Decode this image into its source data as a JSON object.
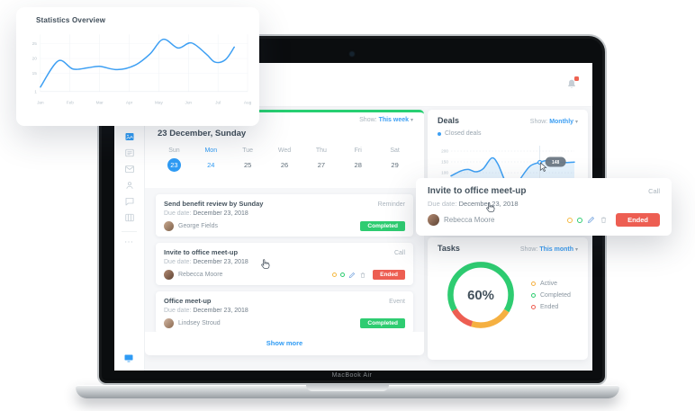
{
  "colors": {
    "accent_blue": "#3d9ff3",
    "green": "#2ecc71",
    "red": "#ed5e52",
    "orange": "#f5b041"
  },
  "laptop": {
    "brand": "MacBook Air"
  },
  "floating_stats": {
    "title": "Statistics Overview"
  },
  "app": {
    "header": {
      "icons": [
        "bell-icon"
      ],
      "has_alert": true
    },
    "sidebar": {
      "icons": [
        "dashboard-icon",
        "tasks-icon",
        "mail-icon",
        "contacts-icon",
        "chat-icon",
        "board-icon",
        "more-icon",
        "display-icon"
      ],
      "active": "dashboard-icon"
    },
    "schedule": {
      "show_label": "Show:",
      "show_value": "This week",
      "caret": "▾",
      "date_heading": "23 December, Sunday",
      "selected_day_index": 0,
      "highlight_day_index": 1,
      "days": [
        {
          "name": "Sun",
          "date": "23"
        },
        {
          "name": "Mon",
          "date": "24"
        },
        {
          "name": "Tue",
          "date": "25"
        },
        {
          "name": "Wed",
          "date": "26"
        },
        {
          "name": "Thu",
          "date": "27"
        },
        {
          "name": "Fri",
          "date": "28"
        },
        {
          "name": "Sat",
          "date": "29"
        }
      ],
      "tasks": [
        {
          "title": "Send benefit review by Sunday",
          "type": "Reminder",
          "due_label": "Due date:",
          "due": "December 23, 2018",
          "assignee": "George Fields",
          "status": "Completed",
          "status_color": "#2ecc71"
        },
        {
          "title": "Invite to office meet-up",
          "type": "Call",
          "due_label": "Due date:",
          "due": "December 23, 2018",
          "assignee": "Rebecca Moore",
          "status": "Ended",
          "status_color": "#ed5e52"
        },
        {
          "title": "Office meet-up",
          "type": "Event",
          "due_label": "Due date:",
          "due": "December 23, 2018",
          "assignee": "Lindsey Stroud",
          "status": "Completed",
          "status_color": "#2ecc71"
        }
      ],
      "show_more_label": "Show more"
    },
    "deals": {
      "title": "Deals",
      "show_label": "Show:",
      "show_value": "Monthly",
      "caret": "▾",
      "legend_label": "Closed deals",
      "tooltip_value": "148"
    },
    "tasks_panel": {
      "title": "Tasks",
      "show_label": "Show:",
      "show_value": "This month",
      "caret": "▾",
      "center_label": "60%",
      "legend": [
        {
          "label": "Active",
          "color": "#f5b041"
        },
        {
          "label": "Completed",
          "color": "#2ecc71"
        },
        {
          "label": "Ended",
          "color": "#ed5e52"
        }
      ]
    }
  },
  "floating_invite": {
    "title": "Invite to office meet-up",
    "type": "Call",
    "due_label": "Due date:",
    "due": "December 23, 2018",
    "assignee": "Rebecca Moore",
    "status": "Ended",
    "status_color": "#ed5e52"
  },
  "chart_data": [
    {
      "id": "statistics-overview",
      "type": "line",
      "title": "Statistics Overview",
      "x_ticks": [
        "Jan",
        "Feb",
        "Mar",
        "Apr",
        "May",
        "Jun",
        "Jul",
        "Aug"
      ],
      "y_ticks": [
        "25",
        "20",
        "15",
        "1"
      ],
      "xlim": [
        0,
        7
      ],
      "ylim": [
        9,
        28
      ],
      "grid": true,
      "legend_position": "none",
      "series": [
        {
          "name": "Statistics",
          "color": "#3d9ff3",
          "points": [
            [
              0,
              10.5
            ],
            [
              0.6,
              19.2
            ],
            [
              1.1,
              16.5
            ],
            [
              1.6,
              16.9
            ],
            [
              2.0,
              17.4
            ],
            [
              2.6,
              16.3
            ],
            [
              3.2,
              17.8
            ],
            [
              3.7,
              21.5
            ],
            [
              4.15,
              26.4
            ],
            [
              4.65,
              23.5
            ],
            [
              5.1,
              25.2
            ],
            [
              5.6,
              21.5
            ],
            [
              5.9,
              18.8
            ],
            [
              6.25,
              19.6
            ],
            [
              6.55,
              23.8
            ]
          ]
        }
      ]
    },
    {
      "id": "deals",
      "type": "area",
      "y_ticks": [
        "200",
        "150",
        "100"
      ],
      "ylim": [
        0,
        250
      ],
      "xlim": [
        0,
        1
      ],
      "grid": "dashed",
      "legend": [
        "Closed deals"
      ],
      "series": [
        {
          "name": "Closed deals",
          "color": "#3d9ff3",
          "points": [
            [
              0,
              85
            ],
            [
              0.08,
              108
            ],
            [
              0.14,
              115
            ],
            [
              0.2,
              104
            ],
            [
              0.26,
              118
            ],
            [
              0.33,
              168
            ],
            [
              0.38,
              140
            ],
            [
              0.44,
              60
            ],
            [
              0.5,
              20
            ],
            [
              0.56,
              70
            ],
            [
              0.64,
              130
            ],
            [
              0.72,
              148
            ],
            [
              0.78,
              156
            ],
            [
              0.85,
              150
            ],
            [
              0.93,
              147
            ],
            [
              1,
              149
            ]
          ]
        }
      ],
      "hover": {
        "x": 0.72,
        "value": 148,
        "label": "148"
      }
    },
    {
      "id": "tasks-donut",
      "type": "pie",
      "center_label": "60%",
      "start_deg": 240,
      "segments": [
        {
          "label": "Completed",
          "value": 67,
          "color": "#2ecc71"
        },
        {
          "label": "Active",
          "value": 21,
          "color": "#f5b041"
        },
        {
          "label": "Ended",
          "value": 12,
          "color": "#ed5e52"
        }
      ]
    }
  ]
}
